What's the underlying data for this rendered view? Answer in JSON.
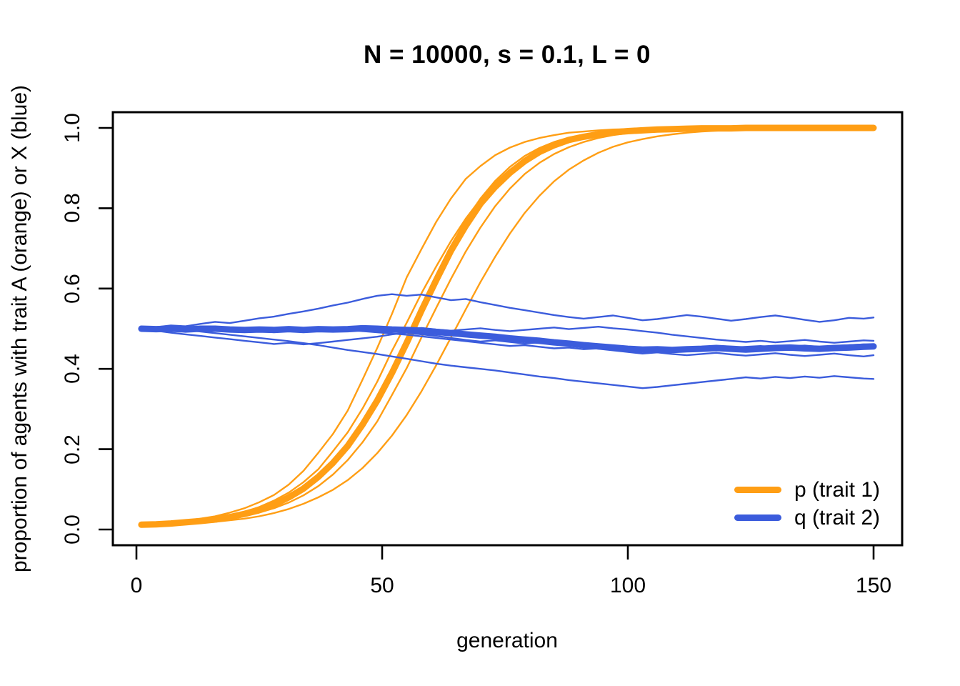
{
  "title": "N = 10000, s = 0.1, L = 0",
  "colors": {
    "orange": "#FF9E14",
    "blue": "#3B5CDC",
    "axis": "#000000",
    "background": "#FFFFFF"
  },
  "chart_data": {
    "type": "line",
    "title": "N = 10000, s = 0.1, L = 0",
    "xlabel": "generation",
    "ylabel": "proportion of agents with trait A (orange) or X (blue)",
    "xlim": [
      0,
      150
    ],
    "ylim": [
      0.0,
      1.0
    ],
    "xticks": [
      "0",
      "50",
      "100",
      "150"
    ],
    "yticks": [
      "0.0",
      "0.2",
      "0.4",
      "0.6",
      "0.8",
      "1.0"
    ],
    "grid": false,
    "box": true,
    "legend": {
      "position": "bottom-right",
      "frame": false,
      "entries": [
        {
          "label": "p (trait 1)",
          "color": "#FF9E14"
        },
        {
          "label": "q (trait 2)",
          "color": "#3B5CDC"
        }
      ]
    },
    "x": [
      1,
      4,
      7,
      10,
      13,
      16,
      19,
      22,
      25,
      28,
      31,
      34,
      37,
      40,
      43,
      46,
      49,
      52,
      55,
      58,
      61,
      64,
      67,
      70,
      73,
      76,
      79,
      82,
      85,
      88,
      91,
      94,
      97,
      100,
      103,
      106,
      109,
      112,
      115,
      118,
      121,
      124,
      127,
      130,
      133,
      136,
      139,
      142,
      145,
      148,
      150
    ],
    "series": [
      {
        "name": "p run 1",
        "group": "p",
        "color": "#FF9E14",
        "width": 2.4,
        "values": [
          0.013,
          0.015,
          0.018,
          0.022,
          0.027,
          0.033,
          0.042,
          0.053,
          0.068,
          0.086,
          0.112,
          0.146,
          0.191,
          0.238,
          0.296,
          0.373,
          0.452,
          0.537,
          0.628,
          0.698,
          0.766,
          0.824,
          0.873,
          0.905,
          0.932,
          0.951,
          0.965,
          0.975,
          0.982,
          0.988,
          0.991,
          0.994,
          0.996,
          0.997,
          0.998,
          0.999,
          0.999,
          0.999,
          1,
          1,
          1,
          1,
          1,
          1,
          1,
          1,
          1,
          1,
          1,
          1,
          1
        ]
      },
      {
        "name": "p run 2",
        "group": "p",
        "color": "#FF9E14",
        "width": 2.4,
        "values": [
          0.012,
          0.014,
          0.016,
          0.019,
          0.023,
          0.028,
          0.035,
          0.044,
          0.056,
          0.072,
          0.092,
          0.118,
          0.15,
          0.195,
          0.242,
          0.301,
          0.368,
          0.445,
          0.515,
          0.588,
          0.655,
          0.718,
          0.774,
          0.822,
          0.863,
          0.896,
          0.922,
          0.943,
          0.958,
          0.97,
          0.979,
          0.985,
          0.989,
          0.992,
          0.995,
          0.996,
          0.997,
          0.998,
          0.999,
          0.999,
          1,
          1,
          1,
          1,
          1,
          1,
          1,
          1,
          1,
          1,
          1
        ]
      },
      {
        "name": "p run 3",
        "group": "p",
        "color": "#FF9E14",
        "width": 2.4,
        "values": [
          0.012,
          0.013,
          0.015,
          0.017,
          0.02,
          0.024,
          0.03,
          0.037,
          0.047,
          0.06,
          0.077,
          0.099,
          0.127,
          0.163,
          0.208,
          0.262,
          0.326,
          0.398,
          0.476,
          0.556,
          0.634,
          0.706,
          0.77,
          0.824,
          0.868,
          0.903,
          0.93,
          0.95,
          0.965,
          0.976,
          0.983,
          0.988,
          0.992,
          0.994,
          0.996,
          0.997,
          0.998,
          0.999,
          0.999,
          1,
          1,
          1,
          1,
          1,
          1,
          1,
          1,
          1,
          1,
          1,
          1
        ]
      },
      {
        "name": "p run 4",
        "group": "p",
        "color": "#FF9E14",
        "width": 2.4,
        "values": [
          0.011,
          0.013,
          0.014,
          0.016,
          0.019,
          0.022,
          0.027,
          0.033,
          0.042,
          0.053,
          0.067,
          0.085,
          0.108,
          0.137,
          0.173,
          0.217,
          0.269,
          0.335,
          0.402,
          0.478,
          0.552,
          0.624,
          0.692,
          0.752,
          0.805,
          0.849,
          0.885,
          0.913,
          0.935,
          0.952,
          0.965,
          0.975,
          0.982,
          0.987,
          0.991,
          0.993,
          0.995,
          0.997,
          0.998,
          0.998,
          0.999,
          0.999,
          1,
          1,
          1,
          1,
          1,
          1,
          1,
          1,
          1
        ]
      },
      {
        "name": "p run 5",
        "group": "p",
        "color": "#FF9E14",
        "width": 2.4,
        "values": [
          0.011,
          0.012,
          0.013,
          0.015,
          0.017,
          0.019,
          0.023,
          0.027,
          0.033,
          0.041,
          0.051,
          0.064,
          0.08,
          0.099,
          0.123,
          0.153,
          0.19,
          0.234,
          0.285,
          0.344,
          0.409,
          0.478,
          0.548,
          0.616,
          0.679,
          0.737,
          0.788,
          0.831,
          0.867,
          0.896,
          0.919,
          0.938,
          0.953,
          0.964,
          0.972,
          0.979,
          0.984,
          0.988,
          0.991,
          0.993,
          0.995,
          0.996,
          0.997,
          0.998,
          0.999,
          0.999,
          0.999,
          1,
          1,
          1,
          1
        ]
      },
      {
        "name": "p mean",
        "group": "p",
        "color": "#FF9E14",
        "width": 9,
        "values": [
          0.012,
          0.013,
          0.015,
          0.018,
          0.021,
          0.025,
          0.031,
          0.039,
          0.049,
          0.062,
          0.08,
          0.102,
          0.131,
          0.166,
          0.208,
          0.261,
          0.321,
          0.39,
          0.465,
          0.545,
          0.621,
          0.694,
          0.756,
          0.811,
          0.853,
          0.888,
          0.917,
          0.94,
          0.957,
          0.97,
          0.978,
          0.984,
          0.989,
          0.992,
          0.994,
          0.996,
          0.997,
          0.998,
          0.999,
          0.999,
          0.999,
          1,
          1,
          1,
          1,
          1,
          1,
          1,
          1,
          1,
          1
        ]
      },
      {
        "name": "q run 1",
        "group": "q",
        "color": "#3B5CDC",
        "width": 2.4,
        "values": [
          0.5,
          0.504,
          0.508,
          0.506,
          0.512,
          0.517,
          0.514,
          0.52,
          0.526,
          0.53,
          0.537,
          0.543,
          0.55,
          0.558,
          0.565,
          0.574,
          0.582,
          0.586,
          0.582,
          0.585,
          0.578,
          0.571,
          0.574,
          0.566,
          0.559,
          0.552,
          0.546,
          0.54,
          0.534,
          0.529,
          0.525,
          0.529,
          0.533,
          0.527,
          0.521,
          0.524,
          0.529,
          0.534,
          0.53,
          0.525,
          0.52,
          0.524,
          0.529,
          0.533,
          0.528,
          0.522,
          0.517,
          0.521,
          0.527,
          0.525,
          0.528
        ]
      },
      {
        "name": "q run 2",
        "group": "q",
        "color": "#3B5CDC",
        "width": 2.4,
        "values": [
          0.5,
          0.497,
          0.501,
          0.498,
          0.503,
          0.5,
          0.496,
          0.5,
          0.503,
          0.499,
          0.502,
          0.498,
          0.501,
          0.497,
          0.5,
          0.503,
          0.499,
          0.496,
          0.499,
          0.502,
          0.498,
          0.495,
          0.498,
          0.501,
          0.497,
          0.494,
          0.497,
          0.5,
          0.503,
          0.499,
          0.502,
          0.505,
          0.501,
          0.498,
          0.494,
          0.49,
          0.485,
          0.481,
          0.477,
          0.473,
          0.47,
          0.467,
          0.47,
          0.466,
          0.469,
          0.472,
          0.468,
          0.465,
          0.468,
          0.471,
          0.47
        ]
      },
      {
        "name": "q run 3",
        "group": "q",
        "color": "#3B5CDC",
        "width": 2.4,
        "values": [
          0.5,
          0.495,
          0.49,
          0.486,
          0.482,
          0.478,
          0.474,
          0.47,
          0.466,
          0.462,
          0.465,
          0.461,
          0.464,
          0.468,
          0.472,
          0.476,
          0.48,
          0.486,
          0.49,
          0.486,
          0.482,
          0.477,
          0.472,
          0.468,
          0.471,
          0.467,
          0.463,
          0.466,
          0.462,
          0.458,
          0.454,
          0.45,
          0.446,
          0.442,
          0.438,
          0.441,
          0.437,
          0.434,
          0.437,
          0.44,
          0.436,
          0.433,
          0.436,
          0.439,
          0.435,
          0.432,
          0.435,
          0.438,
          0.434,
          0.431,
          0.434
        ]
      },
      {
        "name": "q run 4",
        "group": "q",
        "color": "#3B5CDC",
        "width": 2.4,
        "values": [
          0.5,
          0.498,
          0.494,
          0.497,
          0.493,
          0.489,
          0.485,
          0.481,
          0.477,
          0.473,
          0.469,
          0.464,
          0.459,
          0.453,
          0.447,
          0.442,
          0.437,
          0.431,
          0.425,
          0.419,
          0.413,
          0.408,
          0.404,
          0.4,
          0.396,
          0.391,
          0.386,
          0.381,
          0.377,
          0.372,
          0.368,
          0.364,
          0.36,
          0.356,
          0.352,
          0.355,
          0.359,
          0.363,
          0.367,
          0.371,
          0.375,
          0.379,
          0.376,
          0.38,
          0.377,
          0.381,
          0.378,
          0.382,
          0.379,
          0.376,
          0.375
        ]
      },
      {
        "name": "q run 5",
        "group": "q",
        "color": "#3B5CDC",
        "width": 2.4,
        "values": [
          0.5,
          0.501,
          0.498,
          0.5,
          0.502,
          0.499,
          0.501,
          0.498,
          0.5,
          0.497,
          0.499,
          0.501,
          0.498,
          0.495,
          0.497,
          0.494,
          0.491,
          0.488,
          0.485,
          0.481,
          0.477,
          0.473,
          0.469,
          0.465,
          0.461,
          0.457,
          0.459,
          0.455,
          0.451,
          0.453,
          0.449,
          0.451,
          0.447,
          0.444,
          0.446,
          0.448,
          0.45,
          0.452,
          0.449,
          0.451,
          0.453,
          0.455,
          0.457,
          0.454,
          0.456,
          0.458,
          0.455,
          0.457,
          0.459,
          0.461,
          0.46
        ]
      },
      {
        "name": "q mean",
        "group": "q",
        "color": "#3B5CDC",
        "width": 9,
        "values": [
          0.5,
          0.499,
          0.5,
          0.498,
          0.5,
          0.5,
          0.498,
          0.497,
          0.498,
          0.497,
          0.499,
          0.497,
          0.499,
          0.498,
          0.499,
          0.501,
          0.5,
          0.498,
          0.497,
          0.495,
          0.492,
          0.489,
          0.486,
          0.483,
          0.48,
          0.476,
          0.473,
          0.47,
          0.466,
          0.463,
          0.459,
          0.456,
          0.453,
          0.45,
          0.448,
          0.449,
          0.447,
          0.449,
          0.45,
          0.452,
          0.45,
          0.448,
          0.45,
          0.452,
          0.453,
          0.451,
          0.45,
          0.452,
          0.453,
          0.455,
          0.456
        ]
      }
    ]
  }
}
